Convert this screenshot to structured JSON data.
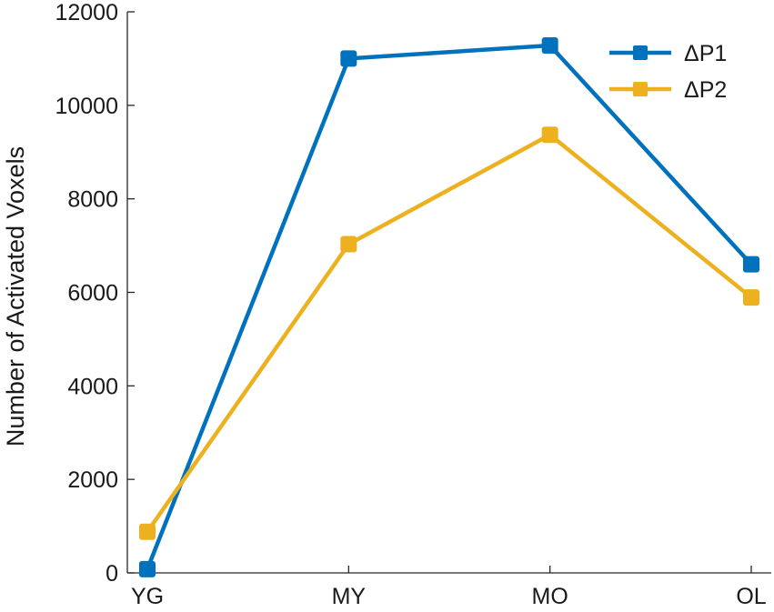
{
  "chart_data": {
    "type": "line",
    "title": "",
    "xlabel": "",
    "ylabel": "Number of Activated Voxels",
    "categories": [
      "YG",
      "MY",
      "MO",
      "OL"
    ],
    "ylim": [
      0,
      12000
    ],
    "yticks": [
      "0",
      "2000",
      "4000",
      "6000",
      "8000",
      "10000",
      "12000"
    ],
    "grid": false,
    "legend_position": "top-right",
    "series": [
      {
        "name": "ΔP1",
        "color": "#0072BD",
        "values": [
          80,
          11000,
          11280,
          6600
        ]
      },
      {
        "name": "ΔP2",
        "color": "#EDB120",
        "values": [
          880,
          7030,
          9370,
          5890
        ]
      }
    ]
  }
}
